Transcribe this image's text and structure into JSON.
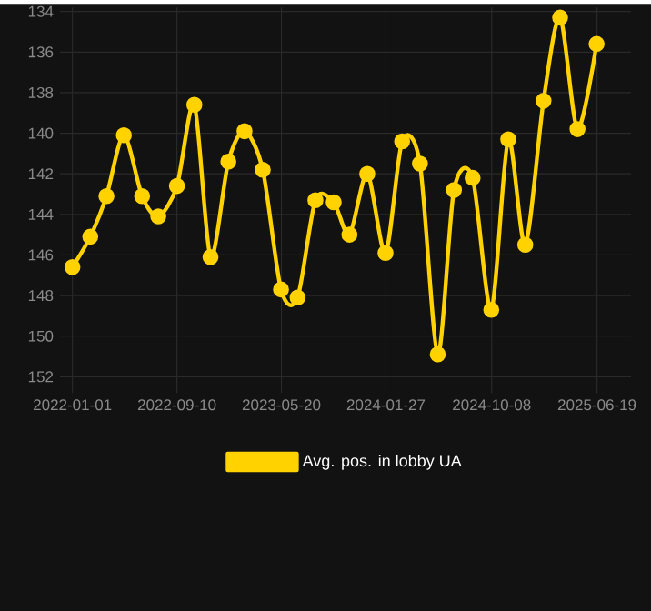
{
  "chart_data": {
    "type": "line",
    "x": [
      "2022-01-01",
      "2022-02-13",
      "2022-03-24",
      "2022-05-05",
      "2022-06-18",
      "2022-07-27",
      "2022-09-10",
      "2022-10-22",
      "2022-11-30",
      "2023-01-12",
      "2023-02-20",
      "2023-04-05",
      "2023-05-19",
      "2023-06-28",
      "2023-08-10",
      "2023-09-23",
      "2023-10-31",
      "2023-12-13",
      "2024-01-26",
      "2024-03-06",
      "2024-04-18",
      "2024-05-31",
      "2024-07-09",
      "2024-08-23",
      "2024-10-07",
      "2024-11-17",
      "2024-12-28",
      "2025-02-10",
      "2025-03-22",
      "2025-05-03",
      "2025-06-18"
    ],
    "series": [
      {
        "name": "Avg. pos. in lobby UA",
        "color": "#ffd200",
        "values": [
          146.6,
          145.1,
          143.1,
          140.1,
          143.1,
          144.1,
          142.6,
          138.6,
          146.1,
          141.4,
          139.9,
          141.8,
          147.7,
          148.1,
          143.3,
          143.4,
          145.0,
          142.0,
          145.9,
          140.4,
          141.5,
          150.9,
          142.8,
          142.2,
          148.7,
          140.3,
          145.5,
          138.4,
          134.3,
          139.8,
          135.6
        ]
      }
    ],
    "xlim": [
      "2021-12-02",
      "2025-09-09"
    ],
    "xticks": [
      "2022-01-01",
      "2022-09-10",
      "2023-05-20",
      "2024-01-27",
      "2024-10-08",
      "2025-06-19"
    ],
    "ylim": [
      152.8,
      133.8
    ],
    "yticks": [
      134,
      136,
      138,
      140,
      142,
      144,
      146,
      148,
      150,
      152
    ],
    "grid": true,
    "legend": "bottom",
    "marker": "circle",
    "line_style": "solid"
  }
}
